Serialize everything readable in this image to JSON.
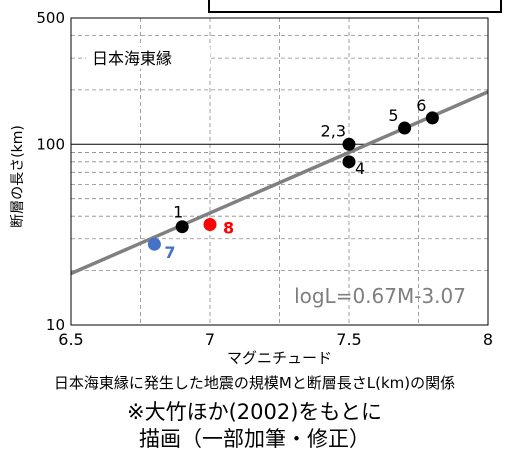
{
  "chart_data": {
    "type": "scatter",
    "title": "",
    "xlabel": "マグニチュード",
    "ylabel": "断層の長さ(km)",
    "xlim": [
      6.5,
      8
    ],
    "ylim": [
      10,
      500
    ],
    "y_scale": "log",
    "grid": true,
    "x_ticks": [
      "6.5",
      "7",
      "7.5",
      "8"
    ],
    "y_ticks": [
      "10",
      "100",
      "500"
    ],
    "region_label": "日本海東縁",
    "regression": {
      "label": "logL=0.67M-3.07",
      "slope": 0.67,
      "intercept": -3.07,
      "color": "#808080"
    },
    "series": [
      {
        "color": "#000000",
        "points": [
          {
            "label": "1",
            "x": 6.9,
            "y": 35
          },
          {
            "label": "2,3",
            "x": 7.5,
            "y": 100
          },
          {
            "label": "4",
            "x": 7.5,
            "y": 80
          },
          {
            "label": "5",
            "x": 7.7,
            "y": 123
          },
          {
            "label": "6",
            "x": 7.8,
            "y": 140
          }
        ]
      },
      {
        "color": "#ff0000",
        "points": [
          {
            "label": "8",
            "x": 7.0,
            "y": 36
          }
        ]
      },
      {
        "color": "#4472c4",
        "points": [
          {
            "label": "7",
            "x": 6.8,
            "y": 28
          }
        ]
      }
    ]
  },
  "captions": {
    "line1": "日本海東縁に発生した地震の規模Mと断層長さL(km)の関係",
    "line2": "※大竹ほか(2002)をもとに",
    "line3": "描画（一部加筆・修正）"
  }
}
